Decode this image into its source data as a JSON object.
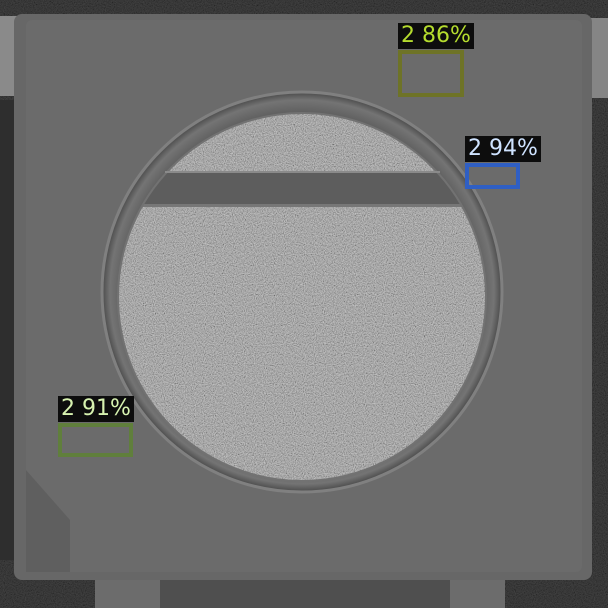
{
  "detections": [
    {
      "label": "2 86%",
      "color": "#6e7327",
      "text_color": "#b5dc2e"
    },
    {
      "label": "2 94%",
      "color": "#2f5fc4",
      "text_color": "#cfe3ff"
    },
    {
      "label": "2 91%",
      "color": "#607f3c",
      "text_color": "#d7f2b0"
    }
  ]
}
